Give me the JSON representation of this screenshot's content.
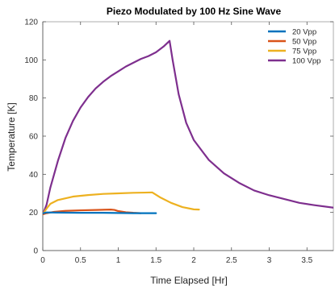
{
  "chart_data": {
    "type": "line",
    "title": "Piezo Modulated by 100 Hz Sine Wave",
    "xlabel": "Time Elapsed [Hr]",
    "ylabel": "Temperature [K]",
    "xlim": [
      0,
      3.85
    ],
    "ylim": [
      0,
      120
    ],
    "xticks": [
      0,
      0.5,
      1,
      1.5,
      2,
      2.5,
      3,
      3.5
    ],
    "xtick_labels": [
      "0",
      "0.5",
      "1",
      "1.5",
      "2",
      "2.5",
      "3",
      "3.5"
    ],
    "yticks": [
      0,
      20,
      40,
      60,
      80,
      100,
      120
    ],
    "ytick_labels": [
      "0",
      "20",
      "40",
      "60",
      "80",
      "100",
      "120"
    ],
    "grid": false,
    "legend_position": "top-right",
    "series": [
      {
        "name": "20 Vpp",
        "color": "#0072BD",
        "x": [
          0,
          0.05,
          0.2,
          0.5,
          0.8,
          1.0,
          1.2,
          1.5
        ],
        "y": [
          19.5,
          20.0,
          19.9,
          19.8,
          19.8,
          19.7,
          19.6,
          19.6
        ]
      },
      {
        "name": "50 Vpp",
        "color": "#D95319",
        "x": [
          0,
          0.05,
          0.15,
          0.3,
          0.5,
          0.7,
          0.9,
          0.95,
          1.0,
          1.1,
          1.2,
          1.3
        ],
        "y": [
          19.0,
          19.6,
          20.3,
          20.8,
          21.1,
          21.3,
          21.5,
          21.3,
          20.7,
          20.1,
          19.8,
          19.6
        ]
      },
      {
        "name": "75 Vpp",
        "color": "#EDB120",
        "x": [
          0,
          0.05,
          0.1,
          0.2,
          0.4,
          0.6,
          0.8,
          1.0,
          1.2,
          1.35,
          1.45,
          1.55,
          1.7,
          1.85,
          2.0,
          2.07
        ],
        "y": [
          19.0,
          22.0,
          24.5,
          26.5,
          28.3,
          29.1,
          29.7,
          30.0,
          30.3,
          30.4,
          30.5,
          28.0,
          25.0,
          22.8,
          21.6,
          21.5
        ]
      },
      {
        "name": "100 Vpp",
        "color": "#7E2F8E",
        "x": [
          0,
          0.05,
          0.1,
          0.2,
          0.3,
          0.4,
          0.5,
          0.6,
          0.7,
          0.8,
          0.9,
          1.0,
          1.1,
          1.2,
          1.3,
          1.4,
          1.5,
          1.6,
          1.68,
          1.72,
          1.8,
          1.9,
          2.0,
          2.2,
          2.4,
          2.6,
          2.8,
          3.0,
          3.2,
          3.4,
          3.6,
          3.85
        ],
        "y": [
          19,
          24,
          33,
          47,
          59,
          68,
          75,
          80.5,
          85,
          88.5,
          91.5,
          94,
          96.5,
          98.5,
          100.5,
          102,
          104,
          107,
          110,
          100,
          82,
          67,
          58,
          47.5,
          40.5,
          35.5,
          31.5,
          29,
          27,
          25,
          23.8,
          22.5
        ]
      }
    ]
  }
}
